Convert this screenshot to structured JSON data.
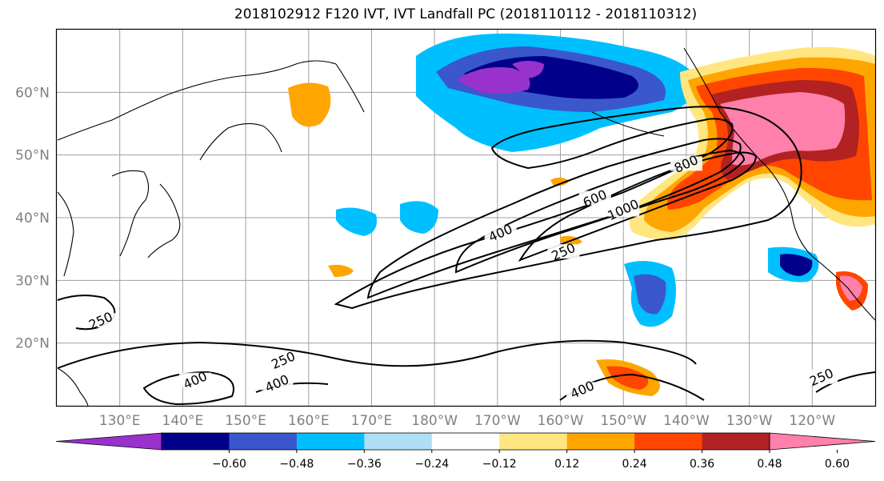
{
  "chart_data": {
    "type": "contour-map",
    "title": "2018102912 F120 IVT, IVT Landfall PC (2018110112 - 2018110312)",
    "lat_ticks": [
      "20°N",
      "30°N",
      "40°N",
      "50°N",
      "60°N"
    ],
    "lon_ticks": [
      "130°E",
      "140°E",
      "150°E",
      "160°E",
      "170°E",
      "180°W",
      "170°W",
      "160°W",
      "150°W",
      "140°W",
      "130°W",
      "120°W"
    ],
    "lon_range": [
      120,
      250
    ],
    "lat_range": [
      10,
      70
    ],
    "grid": true,
    "contour_levels": [
      250,
      400,
      600,
      800,
      1000
    ],
    "contour_labels": [
      {
        "text": "250",
        "lon": 127,
        "lat": 23.5
      },
      {
        "text": "400",
        "lon": 142,
        "lat": 14
      },
      {
        "text": "250",
        "lon": 156,
        "lat": 17.2
      },
      {
        "text": "400",
        "lon": 155,
        "lat": 13.5
      },
      {
        "text": "400",
        "lon": 190.5,
        "lat": 37.5
      },
      {
        "text": "600",
        "lon": 205.5,
        "lat": 43
      },
      {
        "text": "1000",
        "lon": 210,
        "lat": 41.2
      },
      {
        "text": "800",
        "lon": 220,
        "lat": 48.5
      },
      {
        "text": "250",
        "lon": 200.5,
        "lat": 34.5
      },
      {
        "text": "400",
        "lon": 203.5,
        "lat": 12.5
      },
      {
        "text": "250",
        "lon": 241.5,
        "lat": 14.5
      }
    ],
    "colorbar": {
      "colors": [
        "#9932cc",
        "#00008b",
        "#3a57cc",
        "#00bfff",
        "#aedff7",
        "#ffffff",
        "#ffe680",
        "#ffa500",
        "#ff4500",
        "#b22222",
        "#ff80aa"
      ],
      "tick_labels": [
        "−0.60",
        "−0.48",
        "−0.36",
        "−0.24",
        "−0.12",
        "0.12",
        "0.24",
        "0.36",
        "0.48",
        "0.60"
      ],
      "extend": "both"
    }
  }
}
